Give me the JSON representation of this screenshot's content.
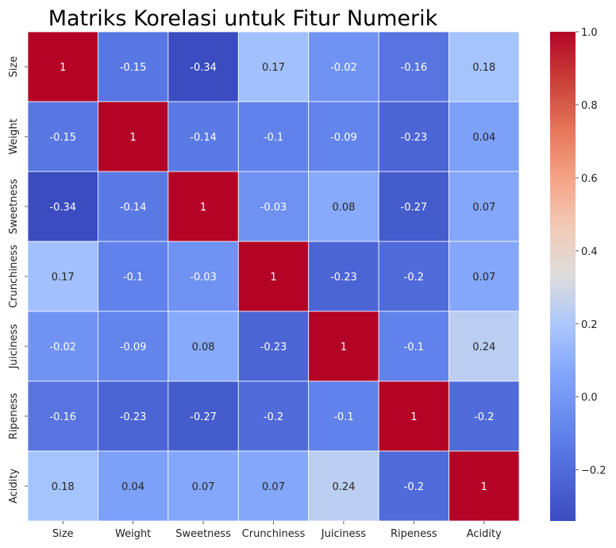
{
  "chart_data": {
    "type": "heatmap",
    "title": "Matriks Korelasi untuk Fitur Numerik",
    "x_categories": [
      "Size",
      "Weight",
      "Sweetness",
      "Crunchiness",
      "Juiciness",
      "Ripeness",
      "Acidity"
    ],
    "y_categories": [
      "Size",
      "Weight",
      "Sweetness",
      "Crunchiness",
      "Juiciness",
      "Ripeness",
      "Acidity"
    ],
    "values": [
      [
        1,
        -0.15,
        -0.34,
        0.17,
        -0.02,
        -0.16,
        0.18
      ],
      [
        -0.15,
        1,
        -0.14,
        -0.1,
        -0.09,
        -0.23,
        0.04
      ],
      [
        -0.34,
        -0.14,
        1,
        -0.03,
        0.08,
        -0.27,
        0.07
      ],
      [
        0.17,
        -0.1,
        -0.03,
        1,
        -0.23,
        -0.2,
        0.07
      ],
      [
        -0.02,
        -0.09,
        0.08,
        -0.23,
        1,
        -0.1,
        0.24
      ],
      [
        -0.16,
        -0.23,
        -0.27,
        -0.2,
        -0.1,
        1,
        -0.2
      ],
      [
        0.18,
        0.04,
        0.07,
        0.07,
        0.24,
        -0.2,
        1
      ]
    ],
    "colorscale": "coolwarm",
    "color_range": [
      -0.34,
      1.0
    ],
    "colorbar_ticks": [
      -0.2,
      0.0,
      0.2,
      0.4,
      0.6,
      0.8,
      1.0
    ],
    "colorbar_tick_labels": [
      "−0.2",
      "0.0",
      "0.2",
      "0.4",
      "0.6",
      "0.8",
      "1.0"
    ],
    "annotations": true,
    "grid": false
  }
}
